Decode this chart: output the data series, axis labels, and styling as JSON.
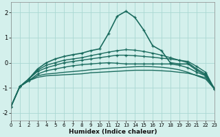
{
  "xlabel": "Humidex (Indice chaleur)",
  "bg_color": "#d4f0ec",
  "grid_color": "#aad8d2",
  "line_color": "#1a6b5e",
  "x": [
    0,
    1,
    2,
    3,
    4,
    5,
    6,
    7,
    8,
    9,
    10,
    11,
    12,
    13,
    14,
    15,
    16,
    17,
    18,
    19,
    20,
    21,
    22,
    23
  ],
  "series": [
    {
      "y": [
        -1.75,
        -0.95,
        -0.72,
        -0.58,
        -0.52,
        -0.5,
        -0.48,
        -0.46,
        -0.44,
        -0.4,
        -0.38,
        -0.36,
        -0.34,
        -0.32,
        -0.3,
        -0.3,
        -0.3,
        -0.32,
        -0.34,
        -0.38,
        -0.42,
        -0.5,
        -0.6,
        -1.0
      ],
      "marker": null,
      "lw": 1.0
    },
    {
      "y": [
        -1.75,
        -0.95,
        -0.72,
        -0.52,
        -0.45,
        -0.42,
        -0.38,
        -0.35,
        -0.32,
        -0.28,
        -0.25,
        -0.22,
        -0.2,
        -0.18,
        -0.16,
        -0.15,
        -0.16,
        -0.18,
        -0.22,
        -0.28,
        -0.38,
        -0.52,
        -0.65,
        -1.05
      ],
      "marker": null,
      "lw": 1.0
    },
    {
      "y": [
        -1.75,
        -0.95,
        -0.72,
        -0.45,
        -0.32,
        -0.25,
        -0.18,
        -0.12,
        -0.08,
        -0.05,
        -0.02,
        0.0,
        -0.02,
        -0.05,
        -0.05,
        -0.05,
        -0.05,
        -0.05,
        -0.05,
        -0.1,
        -0.2,
        -0.38,
        -0.52,
        -1.05
      ],
      "marker": "+",
      "lw": 1.0
    },
    {
      "y": [
        -1.75,
        -0.95,
        -0.65,
        -0.35,
        -0.2,
        -0.1,
        0.0,
        0.05,
        0.1,
        0.15,
        0.2,
        0.25,
        0.3,
        0.3,
        0.28,
        0.25,
        0.22,
        0.18,
        0.15,
        0.1,
        0.05,
        -0.15,
        -0.38,
        -1.05
      ],
      "marker": "+",
      "lw": 1.0
    },
    {
      "y": [
        -1.75,
        -0.95,
        -0.65,
        -0.3,
        -0.1,
        0.0,
        0.1,
        0.15,
        0.2,
        0.28,
        0.35,
        0.42,
        0.48,
        0.52,
        0.5,
        0.45,
        0.38,
        0.3,
        0.2,
        0.1,
        0.0,
        -0.25,
        -0.45,
        -1.05
      ],
      "marker": "+",
      "lw": 1.0
    },
    {
      "y": [
        -1.75,
        -0.95,
        -0.65,
        -0.25,
        0.0,
        0.15,
        0.25,
        0.32,
        0.38,
        0.48,
        0.55,
        1.15,
        1.85,
        2.05,
        1.8,
        1.3,
        0.68,
        0.48,
        0.0,
        -0.05,
        -0.05,
        -0.3,
        -0.5,
        -1.05
      ],
      "marker": "+",
      "lw": 1.2
    }
  ],
  "ylim": [
    -2.3,
    2.4
  ],
  "xlim": [
    0,
    23
  ],
  "yticks": [
    -2,
    -1,
    0,
    1,
    2
  ],
  "xticks": [
    0,
    1,
    2,
    3,
    4,
    5,
    6,
    7,
    8,
    9,
    10,
    11,
    12,
    13,
    14,
    15,
    16,
    17,
    18,
    19,
    20,
    21,
    22,
    23
  ]
}
